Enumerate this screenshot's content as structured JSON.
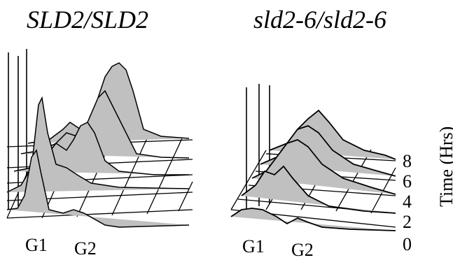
{
  "panels": [
    {
      "title": "SLD2/SLD2",
      "peak_labels": [
        "G1",
        "G2"
      ]
    },
    {
      "title": "sld2-6/sld2-6",
      "peak_labels": [
        "G1",
        "G2"
      ]
    }
  ],
  "time_axis": {
    "ticks": [
      "0",
      "2",
      "4",
      "6",
      "8"
    ],
    "label": "Time (Hrs)"
  },
  "colors": {
    "fill": "#c0c0c0",
    "line": "#000000"
  }
}
